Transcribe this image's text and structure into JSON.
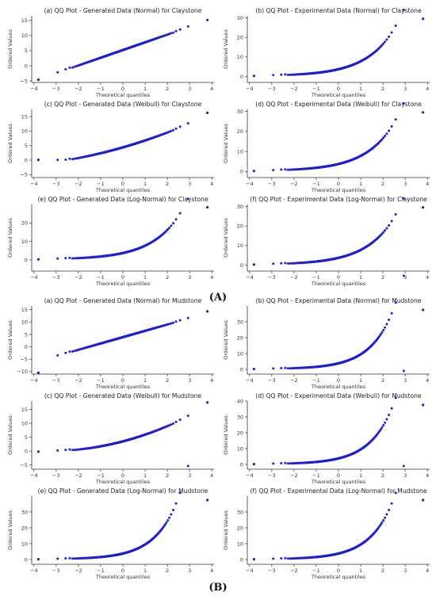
{
  "figure": {
    "group_labels": [
      "(A)",
      "(B)"
    ]
  },
  "chart_data": [
    {
      "type": "scatter",
      "group": "A",
      "title": "(a) QQ Plot - Generated Data (Normal) for Claystone",
      "xlabel": "Theoretical quantiles",
      "ylabel": "Ordered Values",
      "xlim": [
        -4.1,
        4.1
      ],
      "ylim": [
        -5.5,
        16.5
      ],
      "xticks": [
        -4,
        -3,
        -2,
        -1,
        0,
        1,
        2,
        3,
        4
      ],
      "yticks": [
        -5,
        0,
        5,
        10,
        15
      ],
      "shape": "normal",
      "params": {
        "mid": 5.2,
        "slope": 2.55,
        "lo": -4.6,
        "hi": 15.1
      },
      "marker_color": "#1f1fd6",
      "grid": false
    },
    {
      "type": "scatter",
      "group": "A",
      "title": "(b) QQ Plot - Experimental Data (Normal) for Claystone",
      "xlabel": "Theoretical quantiles",
      "ylabel": "Ordered Values",
      "xlim": [
        -4.1,
        4.1
      ],
      "ylim": [
        -3,
        31
      ],
      "xticks": [
        -4,
        -3,
        -2,
        -1,
        0,
        1,
        2,
        3,
        4
      ],
      "yticks": [
        0,
        10,
        20,
        30
      ],
      "shape": "exp",
      "params": {
        "a": 0.45,
        "b": 3.5,
        "k": 0.77,
        "lo": 0.3,
        "hi": 29.5
      },
      "marker_color": "#1f1fd6",
      "grid": false
    },
    {
      "type": "scatter",
      "group": "A",
      "title": "(c) QQ Plot - Generated Data (Weibull) for Claystone",
      "xlabel": "Theoretical quantiles",
      "ylabel": "Ordered Values",
      "xlim": [
        -4.1,
        4.1
      ],
      "ylim": [
        -6,
        17.5
      ],
      "xticks": [
        -4,
        -3,
        -2,
        -1,
        0,
        1,
        2,
        3,
        4
      ],
      "yticks": [
        -5,
        0,
        5,
        10,
        15
      ],
      "shape": "weibull",
      "params": {
        "mid": 4.4,
        "slope": 2.2,
        "curv": 0.18,
        "lo": 0.1,
        "hi": 16.3
      },
      "marker_color": "#1f1fd6",
      "grid": false
    },
    {
      "type": "scatter",
      "group": "A",
      "title": "(d) QQ Plot - Experimental Data (Weibull) for Claystone",
      "xlabel": "Theoretical quantiles",
      "ylabel": "Ordered Values",
      "xlim": [
        -4.1,
        4.1
      ],
      "ylim": [
        -3,
        31
      ],
      "xticks": [
        -4,
        -3,
        -2,
        -1,
        0,
        1,
        2,
        3,
        4
      ],
      "yticks": [
        0,
        10,
        20,
        30
      ],
      "shape": "exp",
      "params": {
        "a": 0.45,
        "b": 3.5,
        "k": 0.77,
        "lo": 0.3,
        "hi": 29.5
      },
      "marker_color": "#1f1fd6",
      "grid": false
    },
    {
      "type": "scatter",
      "group": "A",
      "title": "(e) QQ Plot - Generated Data (Log-Normal) for Claystone",
      "xlabel": "Theoretical quantiles",
      "ylabel": "Ordered Values",
      "xlim": [
        -4.1,
        4.1
      ],
      "ylim": [
        -6,
        30
      ],
      "xticks": [
        -4,
        -3,
        -2,
        -1,
        0,
        1,
        2,
        3,
        4
      ],
      "yticks": [
        0,
        10,
        20
      ],
      "shape": "exp",
      "params": {
        "a": 0.45,
        "b": 3.5,
        "k": 0.76,
        "lo": 0.3,
        "hi": 28.5
      },
      "marker_color": "#1f1fd6",
      "grid": false
    },
    {
      "type": "scatter",
      "group": "A",
      "title": "(f) QQ Plot - Experimental Data (Log-Normal) for Claystone",
      "xlabel": "Theoretical quantiles",
      "ylabel": "Ordered Values",
      "xlim": [
        -4.1,
        4.1
      ],
      "ylim": [
        -3,
        31
      ],
      "xticks": [
        -4,
        -3,
        -2,
        -1,
        0,
        1,
        2,
        3,
        4
      ],
      "yticks": [
        0,
        10,
        20,
        30
      ],
      "shape": "exp",
      "params": {
        "a": 0.45,
        "b": 3.5,
        "k": 0.77,
        "lo": 0.3,
        "hi": 29.5
      },
      "marker_color": "#1f1fd6",
      "grid": false
    },
    {
      "type": "scatter",
      "group": "B",
      "title": "(a) QQ Plot - Generated Data (Normal) for Mudstone",
      "xlabel": "Theoretical quantiles",
      "ylabel": "Ordered Values",
      "xlim": [
        -4.1,
        4.1
      ],
      "ylim": [
        -11,
        16.5
      ],
      "xticks": [
        -4,
        -3,
        -2,
        -1,
        0,
        1,
        2,
        3,
        4
      ],
      "yticks": [
        -10,
        -5,
        0,
        5,
        10,
        15
      ],
      "shape": "normal",
      "params": {
        "mid": 3.9,
        "slope": 2.55,
        "lo": -10.5,
        "hi": 14.3
      },
      "marker_color": "#1f1fd6",
      "grid": false
    },
    {
      "type": "scatter",
      "group": "B",
      "title": "(b) QQ Plot - Experimental Data (Normal) for Mudstone",
      "xlabel": "Theoretical quantiles",
      "ylabel": "Ordered Values",
      "xlim": [
        -4.1,
        4.1
      ],
      "ylim": [
        -3,
        40
      ],
      "xticks": [
        -4,
        -3,
        -2,
        -1,
        0,
        1,
        2,
        3,
        4
      ],
      "yticks": [
        0,
        10,
        20,
        30
      ],
      "shape": "exp",
      "params": {
        "a": 0.3,
        "b": 3.6,
        "k": 0.95,
        "lo": 0.2,
        "hi": 37.5
      },
      "marker_color": "#1f1fd6",
      "grid": false
    },
    {
      "type": "scatter",
      "group": "B",
      "title": "(c) QQ Plot - Generated Data (Weibull) for Mudstone",
      "xlabel": "Theoretical quantiles",
      "ylabel": "Ordered Values",
      "xlim": [
        -4.1,
        4.1
      ],
      "ylim": [
        -6.5,
        18
      ],
      "xticks": [
        -4,
        -3,
        -2,
        -1,
        0,
        1,
        2,
        3,
        4
      ],
      "yticks": [
        -5,
        0,
        5,
        10,
        15
      ],
      "shape": "weibull",
      "params": {
        "mid": 3.5,
        "slope": 2.1,
        "curv": 0.32,
        "lo": -0.2,
        "hi": 17.5
      },
      "marker_color": "#1f1fd6",
      "grid": false
    },
    {
      "type": "scatter",
      "group": "B",
      "title": "(d) QQ Plot - Experimental Data (Weibull) for Mudstone",
      "xlabel": "Theoretical quantiles",
      "ylabel": "Ordered Values",
      "xlim": [
        -4.1,
        4.1
      ],
      "ylim": [
        -3,
        40
      ],
      "xticks": [
        -4,
        -3,
        -2,
        -1,
        0,
        1,
        2,
        3,
        4
      ],
      "yticks": [
        0,
        10,
        20,
        30,
        40
      ],
      "shape": "exp",
      "params": {
        "a": 0.3,
        "b": 3.6,
        "k": 0.95,
        "lo": 0.2,
        "hi": 37.5
      },
      "marker_color": "#1f1fd6",
      "grid": false
    },
    {
      "type": "scatter",
      "group": "B",
      "title": "(e) QQ Plot - Generated Data (Log-Normal) for Mudstone",
      "xlabel": "Theoretical quantiles",
      "ylabel": "Ordered Values",
      "xlim": [
        -4.1,
        4.1
      ],
      "ylim": [
        -3,
        40
      ],
      "xticks": [
        -4,
        -3,
        -2,
        -1,
        0,
        1,
        2,
        3,
        4
      ],
      "yticks": [
        0,
        10,
        20,
        30
      ],
      "shape": "exp",
      "params": {
        "a": 0.3,
        "b": 3.6,
        "k": 0.95,
        "lo": 0.2,
        "hi": 37.5
      },
      "marker_color": "#1f1fd6",
      "grid": false
    },
    {
      "type": "scatter",
      "group": "B",
      "title": "(f) QQ Plot - Experimental Data (Log-Normal) for Mudstone",
      "xlabel": "Theoretical quantiles",
      "ylabel": "Ordered Values",
      "xlim": [
        -4.1,
        4.1
      ],
      "ylim": [
        -3,
        40
      ],
      "xticks": [
        -4,
        -3,
        -2,
        -1,
        0,
        1,
        2,
        3,
        4
      ],
      "yticks": [
        0,
        10,
        20,
        30
      ],
      "shape": "exp",
      "params": {
        "a": 0.3,
        "b": 3.6,
        "k": 0.95,
        "lo": 0.2,
        "hi": 37.5
      },
      "marker_color": "#1f1fd6",
      "grid": false
    }
  ]
}
